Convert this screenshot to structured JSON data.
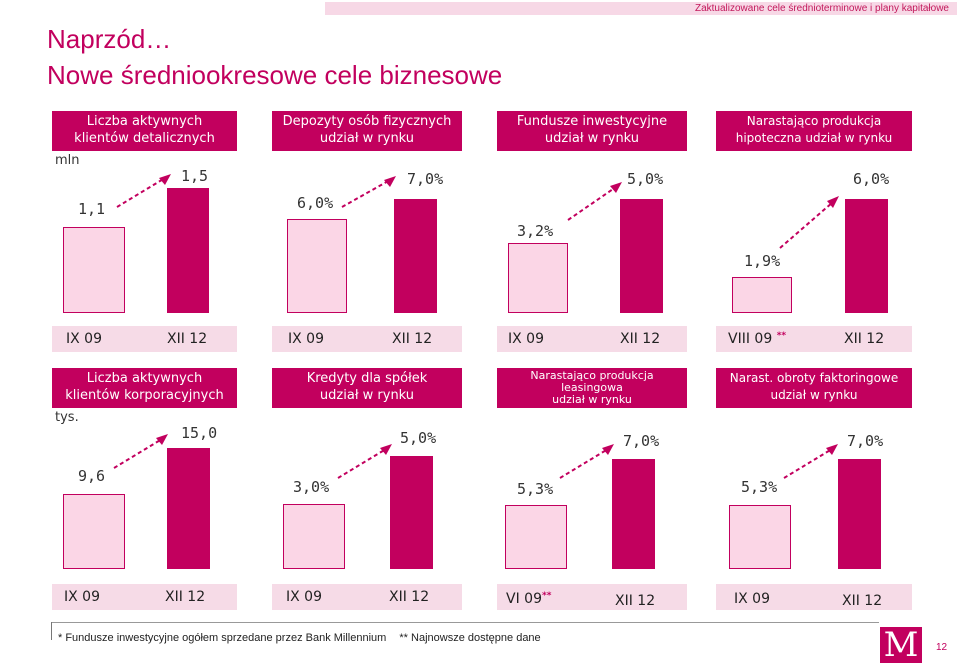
{
  "header": {
    "top_note": "Zaktualizowane cele średnioterminowe i plany kapitałowe",
    "title_line1": "Naprzód…",
    "title_line2": "Nowe średniookresowe cele biznesowe"
  },
  "panels_top": [
    {
      "h1": "Liczba aktywnych",
      "h2": "klientów detalicznych",
      "unit": "mln",
      "v1": "1,1",
      "v2": "1,5",
      "x1": "IX 09",
      "x2": "XII 12",
      "x1_mark": ""
    },
    {
      "h1": "Depozyty osób fizycznych",
      "h2": "udział w rynku",
      "unit": "",
      "v1": "6,0%",
      "v2": "7,0%",
      "x1": "IX 09",
      "x2": "XII 12",
      "x1_mark": ""
    },
    {
      "h1": "Fundusze inwestycyjne",
      "h2": "udział w rynku",
      "unit": "",
      "v1": "3,2%",
      "v2": "5,0%",
      "x1": "IX 09",
      "x2": "XII 12",
      "x1_mark": ""
    },
    {
      "h1": "Narastająco produkcja",
      "h2": "hipoteczna udział w rynku",
      "unit": "",
      "v1": "1,9%",
      "v2": "6,0%",
      "x1": "VIII 09",
      "x2": "XII 12",
      "x1_mark": "**"
    }
  ],
  "panels_bottom": [
    {
      "h1": "Liczba aktywnych",
      "h2": "klientów korporacyjnych",
      "h3": "",
      "unit": "tys.",
      "v1": "9,6",
      "v2": "15,0",
      "x1": "IX 09",
      "x2": "XII 12",
      "x1_mark": ""
    },
    {
      "h1": "Kredyty dla spółek",
      "h2": "udział w rynku",
      "h3": "",
      "unit": "",
      "v1": "3,0%",
      "v2": "5,0%",
      "x1": "IX 09",
      "x2": "XII 12",
      "x1_mark": ""
    },
    {
      "h1": "Narastająco produkcja",
      "h2": "leasingowa",
      "h3": "udział w rynku",
      "unit": "",
      "v1": "5,3%",
      "v2": "7,0%",
      "x1": "VI 09",
      "x2": "XII 12",
      "x1_mark": "**"
    },
    {
      "h1": "Narast. obroty faktoringowe",
      "h2": "udział w rynku",
      "h3": "",
      "unit": "",
      "v1": "5,3%",
      "v2": "7,0%",
      "x1": "IX 09",
      "x2": "XII 12",
      "x1_mark": ""
    }
  ],
  "footnotes": {
    "f1": "* Fundusze inwestycyjne ogółem sprzedane przez Bank Millennium",
    "f2": "** Najnowsze dostępne dane"
  },
  "logo_letter": "M",
  "page_number": "12",
  "colors": {
    "accent": "#c2005e",
    "light_bar": "#fbd6e6",
    "axis_band": "#f6dbe7"
  }
}
